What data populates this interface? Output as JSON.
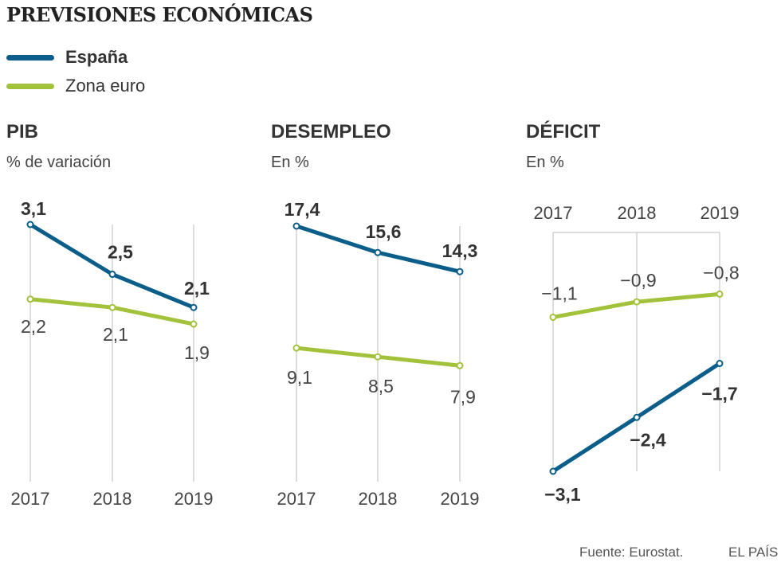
{
  "title": "PREVISIONES ECONÓMICAS",
  "legend": [
    {
      "name": "España",
      "color": "#0b5e8a",
      "bold": true
    },
    {
      "name": "Zona euro",
      "color": "#a3c23b",
      "bold": false
    }
  ],
  "colors": {
    "espana": "#0b5e8a",
    "euro": "#a3c23b",
    "grid": "#bbbbbb",
    "text": "#333333"
  },
  "chart_data": [
    {
      "type": "line",
      "title": "PIB",
      "subtitle": "% de variación",
      "categories": [
        "2017",
        "2018",
        "2019"
      ],
      "ylim": [
        0,
        3.1
      ],
      "x_axis": "bottom",
      "series": [
        {
          "name": "España",
          "values": [
            3.1,
            2.5,
            2.1
          ],
          "labels": [
            "3,1",
            "2,5",
            "2,1"
          ]
        },
        {
          "name": "Zona euro",
          "values": [
            2.2,
            2.1,
            1.9
          ],
          "labels": [
            "2,2",
            "2,1",
            "1,9"
          ]
        }
      ]
    },
    {
      "type": "line",
      "title": "DESEMPLEO",
      "subtitle": "En %",
      "categories": [
        "2017",
        "2018",
        "2019"
      ],
      "ylim": [
        0,
        17.4
      ],
      "x_axis": "bottom",
      "series": [
        {
          "name": "España",
          "values": [
            17.4,
            15.6,
            14.3
          ],
          "labels": [
            "17,4",
            "15,6",
            "14,3"
          ]
        },
        {
          "name": "Zona euro",
          "values": [
            9.1,
            8.5,
            7.9
          ],
          "labels": [
            "9,1",
            "8,5",
            "7,9"
          ]
        }
      ]
    },
    {
      "type": "line",
      "title": "DÉFICIT",
      "subtitle": "En %",
      "categories": [
        "2017",
        "2018",
        "2019"
      ],
      "ylim": [
        -3.1,
        0
      ],
      "x_axis": "top",
      "series": [
        {
          "name": "España",
          "values": [
            -3.1,
            -2.4,
            -1.7
          ],
          "labels": [
            "−3,1",
            "−2,4",
            "−1,7"
          ]
        },
        {
          "name": "Zona euro",
          "values": [
            -1.1,
            -0.9,
            -0.8
          ],
          "labels": [
            "−1,1",
            "−0,9",
            "−0,8"
          ]
        }
      ]
    }
  ],
  "footer": {
    "source": "Fuente: Eurostat.",
    "brand": "EL PAÍS"
  }
}
